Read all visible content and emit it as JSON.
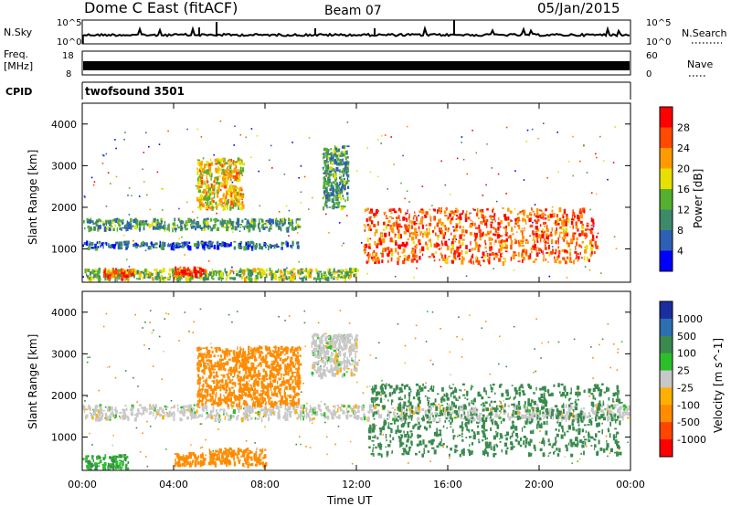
{
  "header": {
    "station": "Dome C East (fitACF)",
    "beam": "Beam 07",
    "date": "05/Jan/2015"
  },
  "strips": {
    "nsky_label": "N.Sky",
    "nsearch_label": "N.Search",
    "log_top": "10^5",
    "log_bottom": "10^0",
    "freq_label_line1": "Freq.",
    "freq_label_line2": "[MHz]",
    "freq_top": "18",
    "freq_bottom": "8",
    "nave_label": "Nave",
    "nave_top": "60",
    "nave_bottom": "0",
    "cpid_label": "CPID",
    "cpid_value": "twofsound 3501"
  },
  "colors": {
    "power_scale": [
      "#0000ff",
      "#2d5fb5",
      "#3c8a6a",
      "#55b030",
      "#e7e000",
      "#ff9a00",
      "#ff4a00",
      "#ff0000"
    ],
    "velocity_scale": [
      "#ff0000",
      "#ff4500",
      "#ff8c00",
      "#ffb000",
      "#c8c8c8",
      "#2cbf2c",
      "#3a8a4e",
      "#2b6fb0",
      "#1a2ea0"
    ],
    "ground_scatter": "#b4b4b4"
  },
  "chart_data": [
    {
      "type": "heatmap",
      "panel": "power",
      "xlabel": "",
      "ylabel": "Slant Range [km]",
      "y_ticks": [
        1000,
        2000,
        3000,
        4000
      ],
      "ylim": [
        200,
        4500
      ],
      "colorbar_label": "Power [dB]",
      "colorbar_ticks": [
        "4",
        "8",
        "12",
        "16",
        "20",
        "24",
        "28"
      ],
      "colorbar_range": [
        0,
        30
      ],
      "regions": [
        {
          "x": [
            0.0,
            12.0
          ],
          "y": [
            300,
            550
          ],
          "value": 14
        },
        {
          "x": [
            0.9,
            2.2
          ],
          "y": [
            350,
            550
          ],
          "value": 24
        },
        {
          "x": [
            4.0,
            5.3
          ],
          "y": [
            380,
            580
          ],
          "value": 27
        },
        {
          "x": [
            0.0,
            9.5
          ],
          "y": [
            1500,
            1750
          ],
          "value": 10
        },
        {
          "x": [
            0.0,
            9.5
          ],
          "y": [
            1050,
            1200
          ],
          "value": 6
        },
        {
          "x": [
            12.3,
            22.5
          ],
          "y": [
            700,
            2000
          ],
          "value": 24
        },
        {
          "x": [
            5.0,
            7.0
          ],
          "y": [
            2000,
            3200
          ],
          "value": 18
        },
        {
          "x": [
            10.5,
            11.6
          ],
          "y": [
            2000,
            3500
          ],
          "value": 10
        }
      ]
    },
    {
      "type": "heatmap",
      "panel": "velocity",
      "xlabel": "Time UT",
      "ylabel": "Slant Range [km]",
      "x_ticks": [
        "00:00",
        "04:00",
        "08:00",
        "12:00",
        "16:00",
        "20:00",
        "00:00"
      ],
      "xlim": [
        0,
        24
      ],
      "y_ticks": [
        1000,
        2000,
        3000,
        4000
      ],
      "ylim": [
        200,
        4500
      ],
      "colorbar_label": "Velocity [m s^-1]",
      "colorbar_ticks": [
        "1000",
        "500",
        "100",
        "25",
        "-25",
        "-100",
        "-500",
        "-1000"
      ],
      "regions": [
        {
          "x": [
            0.0,
            2.0
          ],
          "y": [
            250,
            600
          ],
          "value": 100
        },
        {
          "x": [
            4.0,
            5.4
          ],
          "y": [
            350,
            650
          ],
          "value": -300
        },
        {
          "x": [
            5.5,
            8.0
          ],
          "y": [
            350,
            750
          ],
          "value": -200
        },
        {
          "x": [
            0.0,
            24.0
          ],
          "y": [
            1450,
            1800
          ],
          "value": 0
        },
        {
          "x": [
            12.5,
            23.5
          ],
          "y": [
            600,
            2300
          ],
          "value": 300
        },
        {
          "x": [
            5.0,
            9.5
          ],
          "y": [
            1800,
            3200
          ],
          "value": -200
        },
        {
          "x": [
            10.0,
            12.0
          ],
          "y": [
            2500,
            3500
          ],
          "value": 0
        }
      ]
    }
  ]
}
